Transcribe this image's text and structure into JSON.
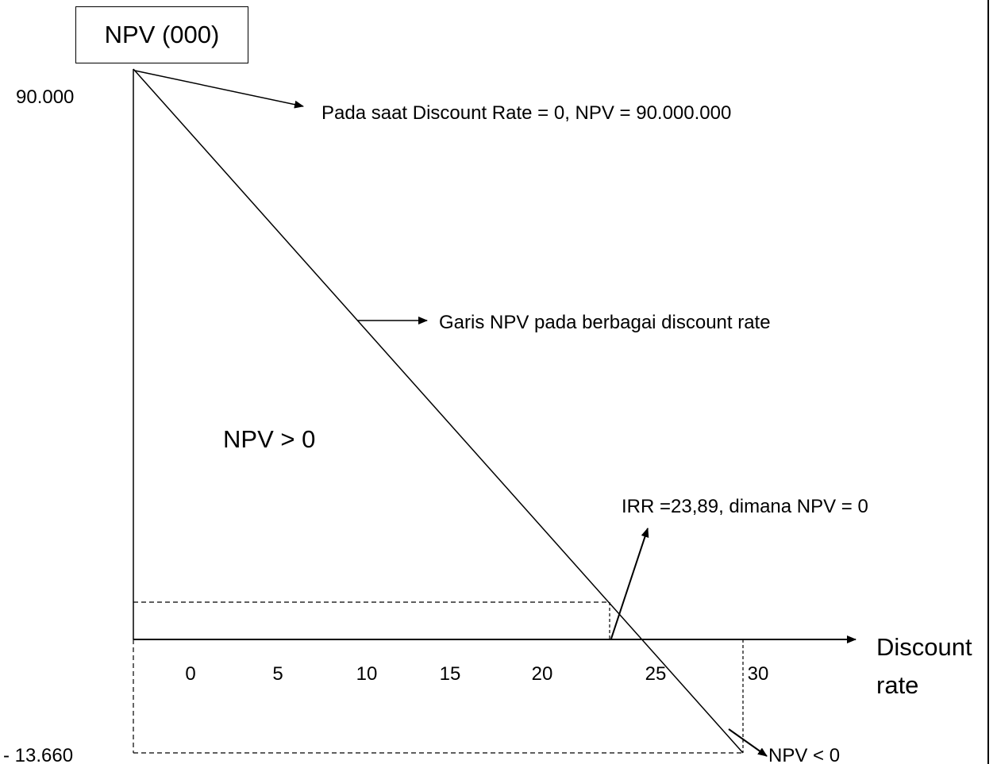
{
  "chart_data": {
    "type": "line",
    "title": "NPV (000)",
    "xlabel": "Discount\nrate",
    "ylabel": "NPV (000)",
    "x_ticks": [
      0,
      5,
      10,
      15,
      20,
      25,
      30
    ],
    "x_tick_labels": [
      "0",
      "5",
      "10",
      "15",
      "20",
      "25",
      "30"
    ],
    "y_labels": {
      "top": "90.000",
      "bottom": "- 13.660"
    },
    "series": [
      {
        "name": "Garis NPV pada berbagai discount rate",
        "points": [
          {
            "x": 0,
            "y": 90000
          },
          {
            "x": 30,
            "y": -13660
          }
        ]
      }
    ],
    "irr": 23.89,
    "regions": {
      "positive": "NPV > 0",
      "negative": "NPV < 0"
    },
    "annotations": {
      "origin_note": "Pada saat Discount Rate = 0, NPV = 90.000.000",
      "line_note": "Garis NPV pada berbagai discount rate",
      "irr_note": "IRR =23,89, dimana NPV = 0",
      "neg_note": "NPV < 0"
    }
  },
  "colors": {
    "line": "#000000",
    "background": "#ffffff"
  }
}
